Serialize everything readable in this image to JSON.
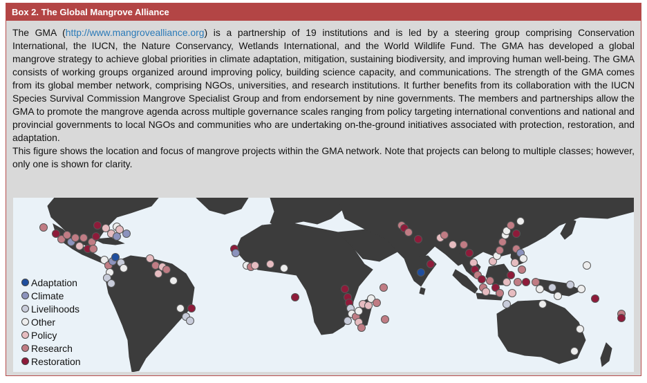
{
  "box": {
    "title": "Box 2. The Global Mangrove Alliance",
    "para1_start": "The GMA (",
    "link": "http://www.mangrovealliance.org",
    "para1_rest": ") is a partnership of 19 institutions and is led by a steering group comprising Conservation International, the IUCN, the Nature Conservancy, Wetlands International, and the World Wildlife Fund. The GMA has developed a global mangrove strategy to achieve global priorities in climate adaptation, mitigation, sustaining biodiversity, and improving human well-being. The GMA consists of working groups organized around improving policy, building science capacity, and communications. The strength of the GMA comes from its global member network, comprising NGOs, universities, and research institutions. It further benefits from its collaboration with the IUCN Species Survival Commission Mangrove Specialist Group and from endorsement by nine governments. The members and partnerships allow the GMA to promote the mangrove agenda across multiple governance scales ranging from policy targeting international conventions and national and provincial governments to local NGOs and communities who are undertaking on-the-ground initiatives associated with protection, restoration, and adaptation.",
    "para2": "This figure shows the location and focus of mangrove projects within the GMA network. Note that projects can belong to multiple classes; however, only one is shown for clarity."
  },
  "colors": {
    "title_bar": "#b34545",
    "box_bg": "#d9d9d9",
    "ocean": "#eaf2f8",
    "land": "#3c3c3c"
  },
  "legend": [
    {
      "label": "Adaptation",
      "color": "#1f4e9e"
    },
    {
      "label": "Climate",
      "color": "#8c93bd"
    },
    {
      "label": "Livelihoods",
      "color": "#c8ccda"
    },
    {
      "label": "Other",
      "color": "#ededed"
    },
    {
      "label": "Policy",
      "color": "#e6bcc0"
    },
    {
      "label": "Research",
      "color": "#c07c84"
    },
    {
      "label": "Restoration",
      "color": "#8e1b3a"
    }
  ]
}
